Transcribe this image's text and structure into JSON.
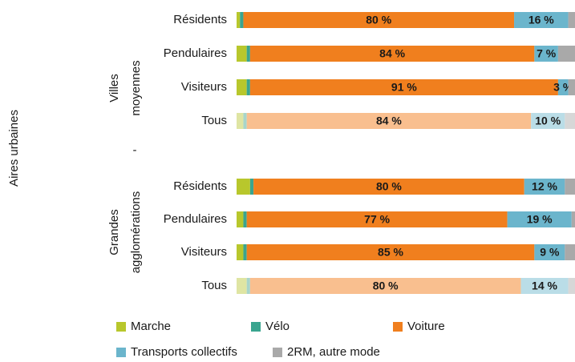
{
  "chart_data": {
    "type": "stacked-barh",
    "axis_label": "Aires urbaines",
    "separator": "-",
    "groups": [
      {
        "label": [
          "Villes",
          "moyennes"
        ]
      },
      {
        "label": [
          "Grandes",
          "agglomérations"
        ]
      }
    ],
    "categories": [
      "Résidents",
      "Pendulaires",
      "Visiteurs",
      "Tous",
      "Résidents",
      "Pendulaires",
      "Visiteurs",
      "Tous"
    ],
    "category_group": [
      0,
      0,
      0,
      0,
      1,
      1,
      1,
      1
    ],
    "xlim": [
      0,
      100
    ],
    "series": [
      {
        "name": "Marche",
        "color": "#b8c72c",
        "colors": [
          "#b8c72c",
          "#b8c72c",
          "#b8c72c",
          "#dfe5a3",
          "#b8c72c",
          "#b8c72c",
          "#b8c72c",
          "#dfe5a3"
        ],
        "values": [
          1,
          3,
          3,
          2,
          4,
          2,
          2,
          3
        ]
      },
      {
        "name": "Vélo",
        "color": "#3aa58f",
        "colors": [
          "#3aa58f",
          "#3aa58f",
          "#3aa58f",
          "#a8d5ca",
          "#3aa58f",
          "#3aa58f",
          "#3aa58f",
          "#a8d5ca"
        ],
        "values": [
          1,
          1,
          1,
          1,
          1,
          1,
          1,
          1
        ]
      },
      {
        "name": "Voiture",
        "color": "#f07f1e",
        "colors": [
          "#f07f1e",
          "#f07f1e",
          "#f07f1e",
          "#f9bf8f",
          "#f07f1e",
          "#f07f1e",
          "#f07f1e",
          "#f9bf8f"
        ],
        "values": [
          80,
          84,
          91,
          84,
          80,
          77,
          85,
          80
        ],
        "value_labels": [
          "80 %",
          "84 %",
          "91 %",
          "84 %",
          "80 %",
          "77 %",
          "85 %",
          "80 %"
        ]
      },
      {
        "name": "Transports collectifs",
        "color": "#6bb5cc",
        "colors": [
          "#6bb5cc",
          "#6bb5cc",
          "#6bb5cc",
          "#badde7",
          "#6bb5cc",
          "#6bb5cc",
          "#6bb5cc",
          "#badde7"
        ],
        "values": [
          16,
          7,
          3,
          10,
          12,
          19,
          9,
          14
        ],
        "value_labels": [
          "16 %",
          "7 %",
          "3 %",
          "10 %",
          "12 %",
          "19 %",
          "9 %",
          "14 %"
        ]
      },
      {
        "name": "2RM, autre mode",
        "color": "#a9a9a9",
        "colors": [
          "#a9a9a9",
          "#a9a9a9",
          "#a9a9a9",
          "#d7d7d7",
          "#a9a9a9",
          "#a9a9a9",
          "#a9a9a9",
          "#d7d7d7"
        ],
        "values": [
          2,
          5,
          2,
          3,
          3,
          1,
          3,
          2
        ]
      }
    ]
  }
}
